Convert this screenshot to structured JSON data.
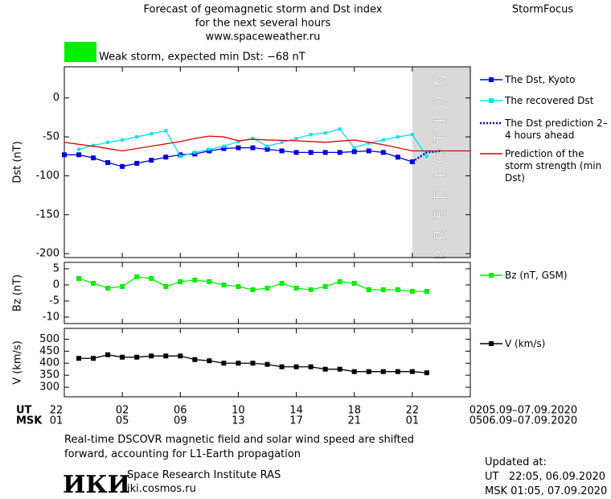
{
  "header": {
    "title_lines": [
      "Forecast of geomagnetic storm and Dst index",
      "for the next several hours",
      "www.spaceweather.ru"
    ],
    "brand": "StormFocus",
    "status": "Weak storm, expected min Dst: −68 nT",
    "status_color": "#00ee00"
  },
  "chart_data": [
    {
      "type": "line",
      "ylabel": "Dst (nT)",
      "xlim": [
        0,
        28
      ],
      "ylim": [
        -205,
        40
      ],
      "yticks": [
        0,
        -50,
        -100,
        -150,
        -200
      ],
      "prediction_zone": [
        24,
        28
      ],
      "prediction_label": "PREDICTION",
      "series": [
        {
          "name": "The Dst, Kyoto",
          "color": "#0000dd",
          "marker": "square",
          "x": [
            0,
            1,
            2,
            3,
            4,
            5,
            6,
            7,
            8,
            9,
            10,
            11,
            12,
            13,
            14,
            15,
            16,
            17,
            18,
            19,
            20,
            21,
            22,
            23,
            24
          ],
          "values": [
            -73,
            -73,
            -77,
            -83,
            -88,
            -84,
            -80,
            -76,
            -73,
            -72,
            -68,
            -65,
            -64,
            -64,
            -66,
            -68,
            -70,
            -70,
            -70,
            -70,
            -69,
            -68,
            -70,
            -76,
            -82
          ]
        },
        {
          "name": "The recovered Dst",
          "color": "#00e5ee",
          "marker": "small-square",
          "x": [
            1,
            2,
            3,
            4,
            5,
            6,
            7,
            8,
            9,
            10,
            11,
            12,
            13,
            14,
            15,
            16,
            17,
            18,
            19,
            20,
            21,
            22,
            23,
            24,
            25
          ],
          "values": [
            -66,
            -61,
            -57,
            -54,
            -50,
            -46,
            -42,
            -75,
            -70,
            -66,
            -62,
            -56,
            -52,
            -62,
            -57,
            -52,
            -47,
            -45,
            -40,
            -64,
            -58,
            -54,
            -50,
            -47,
            -75
          ]
        },
        {
          "name": "The Dst prediction 2–4 hours ahead",
          "color": "#0000dd",
          "style": "dotted",
          "x": [
            24,
            25,
            26
          ],
          "values": [
            -82,
            -70,
            -68
          ]
        },
        {
          "name": "Prediction of the storm strength (min Dst)",
          "color": "#dd0000",
          "x": [
            0,
            2,
            4,
            6,
            8,
            9,
            10,
            11,
            12,
            13,
            14,
            16,
            18,
            20,
            22,
            24,
            28
          ],
          "values": [
            -57,
            -62,
            -68,
            -62,
            -56,
            -52,
            -49,
            -50,
            -55,
            -53,
            -54,
            -55,
            -57,
            -54,
            -60,
            -68,
            -68
          ]
        }
      ]
    },
    {
      "type": "line",
      "ylabel": "Bz (nT)",
      "xlim": [
        0,
        28
      ],
      "ylim": [
        -12,
        7
      ],
      "yticks": [
        5,
        0,
        -5,
        -10
      ],
      "series": [
        {
          "name": "Bz (nT, GSM)",
          "color": "#00ee00",
          "marker": "square",
          "x": [
            1,
            2,
            3,
            4,
            5,
            6,
            7,
            8,
            9,
            10,
            11,
            12,
            13,
            14,
            15,
            16,
            17,
            18,
            19,
            20,
            21,
            22,
            23,
            24,
            25
          ],
          "values": [
            2,
            0.5,
            -1,
            -0.5,
            2.5,
            2,
            -0.5,
            1,
            1.5,
            1,
            0,
            -0.5,
            -1.5,
            -1,
            0.5,
            -1,
            -1.5,
            -0.5,
            1,
            0.5,
            -1.5,
            -1.5,
            -1.5,
            -2,
            -2
          ]
        }
      ]
    },
    {
      "type": "line",
      "ylabel": "V (km/s)",
      "xlim": [
        0,
        28
      ],
      "ylim": [
        260,
        545
      ],
      "yticks": [
        500,
        450,
        400,
        350,
        300
      ],
      "xticks": [
        {
          "value": 0,
          "label": "22"
        },
        {
          "value": 4,
          "label": "02"
        },
        {
          "value": 8,
          "label": "06"
        },
        {
          "value": 12,
          "label": "10"
        },
        {
          "value": 16,
          "label": "14"
        },
        {
          "value": 20,
          "label": "18"
        },
        {
          "value": 24,
          "label": "22"
        },
        {
          "value": 28,
          "label": "02"
        }
      ],
      "xticks_msk": [
        {
          "value": 0,
          "label": "01"
        },
        {
          "value": 4,
          "label": "05"
        },
        {
          "value": 8,
          "label": "09"
        },
        {
          "value": 12,
          "label": "13"
        },
        {
          "value": 16,
          "label": "17"
        },
        {
          "value": 20,
          "label": "21"
        },
        {
          "value": 24,
          "label": "01"
        },
        {
          "value": 28,
          "label": "05"
        }
      ],
      "series": [
        {
          "name": "V (km/s)",
          "color": "#000000",
          "marker": "square",
          "x": [
            1,
            2,
            3,
            4,
            5,
            6,
            7,
            8,
            9,
            10,
            11,
            12,
            13,
            14,
            15,
            16,
            17,
            18,
            19,
            20,
            21,
            22,
            23,
            24,
            25
          ],
          "values": [
            420,
            420,
            435,
            425,
            425,
            430,
            430,
            430,
            415,
            410,
            400,
            400,
            400,
            395,
            385,
            385,
            385,
            375,
            375,
            365,
            365,
            365,
            365,
            365,
            360
          ]
        }
      ]
    }
  ],
  "time_rows": [
    {
      "name": "UT",
      "range": "05.09–07.09.2020"
    },
    {
      "name": "MSK",
      "range": "06.09–07.09.2020"
    }
  ],
  "footer": {
    "note_lines": [
      "Real-time DSCOVR magnetic field and solar wind speed are shifted",
      "forward, accounting for L1-Earth propagation"
    ],
    "logo": "ИКИ",
    "institute": "Space Research Institute RAS",
    "site": "iki.cosmos.ru",
    "updated": [
      "Updated at:",
      "UT   22:05, 06.09.2020",
      "MSK 01:05, 07.09.2020"
    ]
  }
}
